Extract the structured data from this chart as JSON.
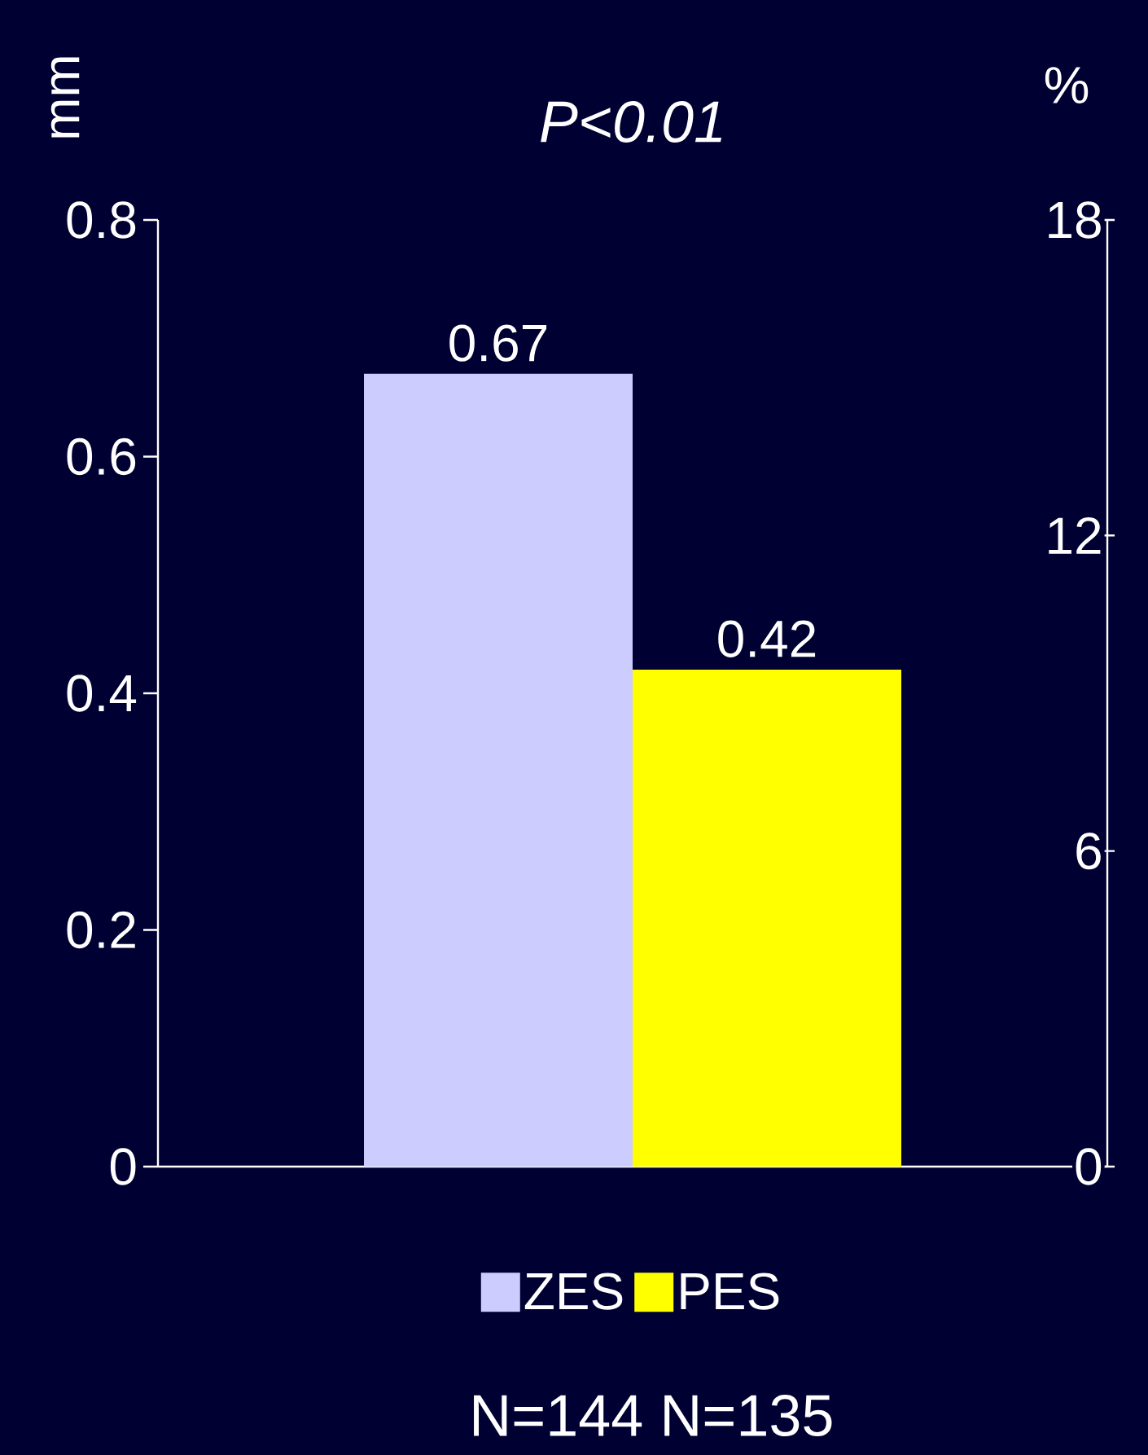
{
  "chart_data": {
    "type": "bar",
    "title": "P<0.01",
    "ylabel": "mm",
    "y2label": "%",
    "categories": [
      null
    ],
    "series": [
      {
        "name": "ZES",
        "color": "#ccccff",
        "values": [
          0.67
        ]
      },
      {
        "name": "PES",
        "color": "#ffff00",
        "values": [
          0.42
        ]
      }
    ],
    "ylim": [
      0,
      0.8
    ],
    "yticks": [
      0,
      0.2,
      0.4,
      0.6,
      0.8
    ],
    "y2lim": [
      0,
      18
    ],
    "y2ticks": [
      0,
      6,
      12,
      18
    ],
    "data_labels": true,
    "legend": "bottom",
    "annotations": [
      "N=144",
      "N=135"
    ]
  }
}
